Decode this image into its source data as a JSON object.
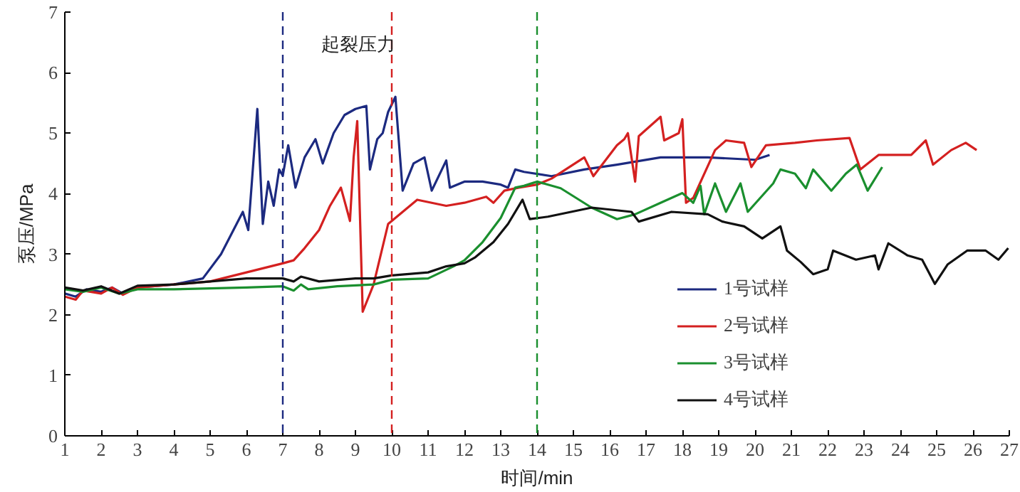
{
  "chart_data": {
    "type": "line",
    "xlabel": "时间/min",
    "ylabel": "泵压/MPa",
    "xlim": [
      1,
      27
    ],
    "ylim": [
      0,
      7
    ],
    "xticks": [
      1,
      2,
      3,
      4,
      5,
      6,
      7,
      8,
      9,
      10,
      11,
      12,
      13,
      14,
      15,
      16,
      17,
      18,
      19,
      20,
      21,
      22,
      23,
      24,
      25,
      26,
      27
    ],
    "yticks": [
      0,
      1,
      2,
      3,
      4,
      5,
      6,
      7
    ],
    "grid": false,
    "legend": "bottom right",
    "line_style": "solid",
    "marker": "none",
    "annotations": [
      "起裂压力"
    ],
    "ref_lines": [
      {
        "axis": "x",
        "value": 7,
        "label": null,
        "color": "#1c2a80",
        "line_style": "dashed"
      },
      {
        "axis": "x",
        "value": 10,
        "label": null,
        "color": "#d42020",
        "line_style": "dashed"
      },
      {
        "axis": "x",
        "value": 14,
        "label": null,
        "color": "#1a8f2e",
        "line_style": "dashed"
      }
    ],
    "series": [
      {
        "name": "1号试样",
        "color": "#1c2a80",
        "x": [
          1,
          1.3,
          1.6,
          2,
          2.3,
          2.6,
          3,
          4,
          4.8,
          5.3,
          5.9,
          6.05,
          6.3,
          6.45,
          6.6,
          6.75,
          6.9,
          7.0,
          7.15,
          7.35,
          7.6,
          7.9,
          8.1,
          8.4,
          8.7,
          9.0,
          9.3,
          9.4,
          9.6,
          9.75,
          9.9,
          10.1,
          10.3,
          10.6,
          10.9,
          11.1,
          11.5,
          11.6,
          12,
          12.5,
          13.0,
          13.2,
          13.4,
          13.64,
          14.4,
          15.3,
          16.2,
          17.4,
          18.7,
          20.0,
          20.4
        ],
        "values": [
          2.35,
          2.3,
          2.42,
          2.38,
          2.45,
          2.35,
          2.45,
          2.5,
          2.6,
          3.0,
          3.7,
          3.4,
          5.4,
          3.5,
          4.2,
          3.8,
          4.4,
          4.3,
          4.8,
          4.1,
          4.6,
          4.9,
          4.5,
          5.0,
          5.3,
          5.4,
          5.45,
          4.4,
          4.9,
          5.0,
          5.35,
          5.6,
          4.05,
          4.5,
          4.6,
          4.05,
          4.55,
          4.1,
          4.2,
          4.2,
          4.15,
          4.1,
          4.4,
          4.36,
          4.29,
          4.4,
          4.48,
          4.6,
          4.6,
          4.56,
          4.64
        ]
      },
      {
        "name": "2号试样",
        "color": "#d42020",
        "x": [
          1,
          1.3,
          1.5,
          2,
          2.3,
          2.6,
          3,
          4,
          5,
          6,
          7,
          7.3,
          7.6,
          8.0,
          8.3,
          8.6,
          8.85,
          8.95,
          9.05,
          9.2,
          9.5,
          9.9,
          10.3,
          10.7,
          11.5,
          12,
          12.6,
          12.8,
          13.1,
          13.5,
          14.0,
          14.4,
          15.3,
          15.55,
          16.2,
          16.4,
          16.5,
          16.7,
          16.8,
          17.4,
          17.5,
          17.9,
          18.0,
          18.1,
          18.3,
          18.9,
          19.2,
          19.7,
          19.9,
          20.3,
          21.1,
          21.7,
          22.6,
          22.9,
          23.4,
          24.3,
          24.7,
          24.9,
          25.4,
          25.8,
          26.1
        ],
        "values": [
          2.3,
          2.25,
          2.4,
          2.35,
          2.45,
          2.33,
          2.45,
          2.5,
          2.55,
          2.7,
          2.85,
          2.9,
          3.1,
          3.4,
          3.8,
          4.1,
          3.55,
          4.6,
          5.2,
          2.05,
          2.5,
          3.5,
          3.7,
          3.9,
          3.8,
          3.85,
          3.95,
          3.85,
          4.05,
          4.1,
          4.15,
          4.25,
          4.6,
          4.29,
          4.8,
          4.9,
          5.0,
          4.2,
          4.95,
          5.27,
          4.88,
          5.0,
          5.23,
          3.85,
          3.93,
          4.72,
          4.88,
          4.84,
          4.44,
          4.8,
          4.84,
          4.88,
          4.92,
          4.4,
          4.64,
          4.64,
          4.88,
          4.48,
          4.72,
          4.84,
          4.72
        ]
      },
      {
        "name": "3号试样",
        "color": "#1a8f2e",
        "x": [
          1,
          1.5,
          2,
          2.5,
          3,
          4,
          6,
          7,
          7.3,
          7.5,
          7.7,
          8.5,
          9.5,
          10,
          11,
          11.7,
          12,
          12.5,
          13,
          13.4,
          13.64,
          14.0,
          14.65,
          15.5,
          16.2,
          16.7,
          17.4,
          18.0,
          18.3,
          18.5,
          18.6,
          18.9,
          19.2,
          19.6,
          19.8,
          20.5,
          20.7,
          21.1,
          21.4,
          21.6,
          22.1,
          22.5,
          22.8,
          23.1,
          23.5
        ],
        "values": [
          2.42,
          2.38,
          2.45,
          2.35,
          2.42,
          2.42,
          2.45,
          2.47,
          2.4,
          2.5,
          2.42,
          2.47,
          2.5,
          2.58,
          2.6,
          2.8,
          2.9,
          3.2,
          3.6,
          4.1,
          4.13,
          4.2,
          4.09,
          3.77,
          3.58,
          3.66,
          3.85,
          4.01,
          3.85,
          4.13,
          3.66,
          4.17,
          3.7,
          4.17,
          3.7,
          4.17,
          4.4,
          4.33,
          4.09,
          4.4,
          4.05,
          4.33,
          4.48,
          4.05,
          4.44
        ]
      },
      {
        "name": "4号试样",
        "color": "#111111",
        "x": [
          1,
          1.5,
          2,
          2.5,
          3,
          4,
          5,
          6,
          7,
          7.3,
          7.5,
          8,
          9,
          9.5,
          10,
          11,
          11.5,
          12,
          12.3,
          12.8,
          13.2,
          13.6,
          13.8,
          14.3,
          15.5,
          16.6,
          16.8,
          17.7,
          18.7,
          19.1,
          19.7,
          20.2,
          20.7,
          20.88,
          21.26,
          21.6,
          22.0,
          22.15,
          22.78,
          23.3,
          23.4,
          23.67,
          24.2,
          24.6,
          24.95,
          25.3,
          25.84,
          26.35,
          26.7,
          26.97
        ],
        "values": [
          2.45,
          2.4,
          2.47,
          2.35,
          2.48,
          2.5,
          2.55,
          2.6,
          2.6,
          2.55,
          2.63,
          2.55,
          2.6,
          2.6,
          2.65,
          2.7,
          2.8,
          2.85,
          2.95,
          3.2,
          3.5,
          3.9,
          3.58,
          3.62,
          3.77,
          3.7,
          3.54,
          3.7,
          3.66,
          3.54,
          3.46,
          3.26,
          3.46,
          3.06,
          2.87,
          2.67,
          2.75,
          3.06,
          2.91,
          2.98,
          2.75,
          3.18,
          2.98,
          2.91,
          2.51,
          2.83,
          3.06,
          3.06,
          2.91,
          3.1
        ]
      }
    ]
  }
}
